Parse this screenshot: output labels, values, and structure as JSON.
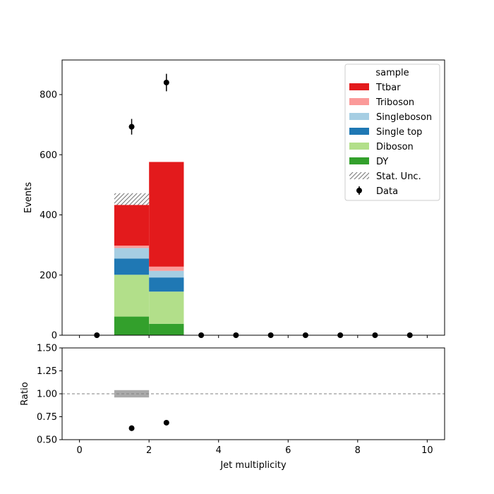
{
  "chart_data": [
    {
      "type": "bar",
      "stacked": true,
      "xlabel": "",
      "ylabel": "Events",
      "xlim": [
        -0.5,
        10.5
      ],
      "ylim": [
        0,
        915
      ],
      "x_ticks": [
        0,
        2,
        4,
        6,
        8,
        10
      ],
      "y_ticks": [
        0,
        200,
        400,
        600,
        800
      ],
      "grid": false,
      "legend": {
        "title": "sample",
        "placement": "top-right",
        "entries": [
          {
            "label": "Ttbar",
            "color": "#e31a1c",
            "kind": "patch"
          },
          {
            "label": "Triboson",
            "color": "#fb9a99",
            "kind": "patch"
          },
          {
            "label": "Singleboson",
            "color": "#a6cee3",
            "kind": "patch"
          },
          {
            "label": "Single top",
            "color": "#1f78b4",
            "kind": "patch"
          },
          {
            "label": "Diboson",
            "color": "#b2df8a",
            "kind": "patch"
          },
          {
            "label": "DY",
            "color": "#33a02c",
            "kind": "patch"
          },
          {
            "label": "Stat. Unc.",
            "color": "#808080",
            "kind": "hatch"
          },
          {
            "label": "Data",
            "color": "#000000",
            "kind": "errorbar"
          }
        ]
      },
      "bin_edges": [
        1,
        2,
        3
      ],
      "series": [
        {
          "name": "DY",
          "color": "#33a02c",
          "values": [
            62,
            38
          ]
        },
        {
          "name": "Diboson",
          "color": "#b2df8a",
          "values": [
            139,
            107
          ]
        },
        {
          "name": "Single top",
          "color": "#1f78b4",
          "values": [
            54,
            47
          ]
        },
        {
          "name": "Singleboson",
          "color": "#a6cee3",
          "values": [
            35,
            22
          ]
        },
        {
          "name": "Triboson",
          "color": "#fb9a99",
          "values": [
            8,
            14
          ]
        },
        {
          "name": "Ttbar",
          "color": "#e31a1c",
          "values": [
            137,
            348
          ]
        }
      ],
      "stat_unc": [
        {
          "x_low": 1,
          "x_high": 2,
          "low": 433,
          "high": 472
        },
        {
          "x_low": 2,
          "x_high": 3,
          "low": 576,
          "high": 576
        }
      ],
      "data": {
        "name": "Data",
        "x": [
          0.5,
          1.5,
          2.5,
          3.5,
          4.5,
          5.5,
          6.5,
          7.5,
          8.5,
          9.5
        ],
        "y": [
          0,
          693,
          840,
          0,
          0,
          0,
          0,
          0,
          0,
          0
        ],
        "yerr": [
          0,
          26,
          29,
          0,
          0,
          0,
          0,
          0,
          0,
          0
        ]
      }
    },
    {
      "type": "scatter",
      "xlabel": "Jet multiplicity",
      "ylabel": "Ratio",
      "xlim": [
        -0.5,
        10.5
      ],
      "ylim": [
        0.5,
        1.5
      ],
      "x_ticks": [
        0,
        2,
        4,
        6,
        8,
        10
      ],
      "y_ticks": [
        0.5,
        0.75,
        1.0,
        1.25,
        1.5
      ],
      "y_tick_labels": [
        "0.50",
        "0.75",
        "1.00",
        "1.25",
        "1.50"
      ],
      "reference_line": 1.0,
      "grid": false,
      "unc_band": [
        {
          "x_low": 1,
          "x_high": 2,
          "low": 0.96,
          "high": 1.04
        }
      ],
      "points": {
        "x": [
          1.5,
          2.5
        ],
        "y": [
          0.625,
          0.685
        ],
        "yerr": [
          0.03,
          0.025
        ]
      }
    }
  ]
}
